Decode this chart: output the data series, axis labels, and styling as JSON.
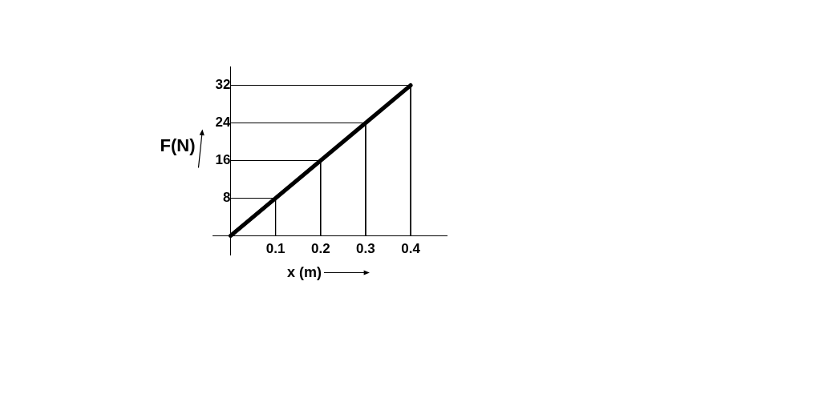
{
  "chart_data": {
    "type": "line",
    "xlabel": "x (m)",
    "ylabel": "F(N)",
    "x": [
      0,
      0.1,
      0.2,
      0.3,
      0.4
    ],
    "series": [
      {
        "color": "#000000",
        "values": [
          0,
          8,
          16,
          24,
          32
        ]
      },
      {
        "color": "#000000",
        "x": [
          0,
          0.1,
          0.1
        ],
        "values": [
          8,
          8,
          0
        ]
      },
      {
        "color": "#000000",
        "x": [
          0,
          0.2,
          0.2
        ],
        "values": [
          16,
          16,
          0
        ]
      },
      {
        "color": "#000000",
        "x": [
          0,
          0.3,
          0.3
        ],
        "values": [
          24,
          24,
          0
        ]
      },
      {
        "color": "#000000",
        "x": [
          0,
          0.4,
          0.4
        ],
        "values": [
          32,
          32,
          0
        ]
      }
    ],
    "xlim": [
      -0.04,
      0.48
    ],
    "ylim": [
      -4,
      36
    ],
    "xticks": [
      0.1,
      0.2,
      0.3,
      0.4
    ],
    "yticks": [
      8,
      16,
      24,
      32
    ],
    "marker": "none",
    "line_style": "solid"
  }
}
